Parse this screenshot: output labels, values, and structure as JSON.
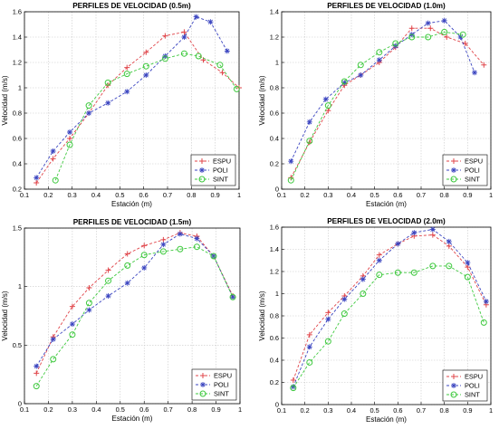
{
  "colors": {
    "ESPU": "#e0454a",
    "POLI": "#3b45c0",
    "SINT": "#3ec93e",
    "grid": "#c8c8c8",
    "axis": "#000000"
  },
  "chart_data": [
    {
      "type": "line",
      "title": "PERFILES DE VELOCIDAD (0.5m)",
      "xlabel": "Estación (m)",
      "ylabel": "Velocidad (m/s)",
      "xlim": [
        0.1,
        1
      ],
      "ylim": [
        0.2,
        1.6
      ],
      "xticks": [
        "0.1",
        "0.2",
        "0.3",
        "0.4",
        "0.5",
        "0.6",
        "0.7",
        "0.8",
        "0.9",
        "1"
      ],
      "yticks": [
        "0.2",
        "0.4",
        "0.6",
        "0.8",
        "1",
        "1.2",
        "1.4",
        "1.6"
      ],
      "grid": true,
      "legend_position": "bottom-right",
      "series": [
        {
          "name": "ESPU",
          "marker": "plus",
          "line": "dashed",
          "x": [
            0.15,
            0.22,
            0.29,
            0.37,
            0.45,
            0.53,
            0.61,
            0.69,
            0.77,
            0.85,
            0.93,
            1.0
          ],
          "y": [
            0.25,
            0.44,
            0.6,
            0.8,
            1.02,
            1.16,
            1.28,
            1.41,
            1.44,
            1.22,
            1.12,
            1.0
          ]
        },
        {
          "name": "POLI",
          "marker": "star",
          "line": "dashed",
          "x": [
            0.15,
            0.22,
            0.29,
            0.37,
            0.45,
            0.53,
            0.61,
            0.69,
            0.77,
            0.82,
            0.88,
            0.95
          ],
          "y": [
            0.29,
            0.5,
            0.65,
            0.8,
            0.88,
            0.97,
            1.1,
            1.25,
            1.4,
            1.56,
            1.52,
            1.29
          ]
        },
        {
          "name": "SINT",
          "marker": "circle",
          "line": "dashed",
          "x": [
            0.23,
            0.29,
            0.37,
            0.45,
            0.53,
            0.61,
            0.69,
            0.77,
            0.83,
            0.92,
            0.99
          ],
          "y": [
            0.27,
            0.55,
            0.86,
            1.04,
            1.11,
            1.17,
            1.23,
            1.27,
            1.25,
            1.18,
            0.99
          ]
        }
      ]
    },
    {
      "type": "line",
      "title": "PERFILES DE VELOCIDAD (1.0m)",
      "xlabel": "Estación (m)",
      "ylabel": "Velocidad (m/s)",
      "xlim": [
        0.1,
        1
      ],
      "ylim": [
        0,
        1.4
      ],
      "xticks": [
        "0.1",
        "0.2",
        "0.3",
        "0.4",
        "0.5",
        "0.6",
        "0.7",
        "0.8",
        "0.9",
        "1"
      ],
      "yticks": [
        "0",
        "0.2",
        "0.4",
        "0.6",
        "0.8",
        "1",
        "1.2",
        "1.4"
      ],
      "grid": true,
      "legend_position": "bottom-right",
      "series": [
        {
          "name": "ESPU",
          "marker": "plus",
          "line": "dashed",
          "x": [
            0.14,
            0.22,
            0.3,
            0.37,
            0.44,
            0.52,
            0.59,
            0.66,
            0.74,
            0.81,
            0.89,
            0.97
          ],
          "y": [
            0.09,
            0.37,
            0.62,
            0.82,
            0.9,
            1.0,
            1.12,
            1.27,
            1.27,
            1.2,
            1.15,
            0.98
          ]
        },
        {
          "name": "POLI",
          "marker": "star",
          "line": "dashed",
          "x": [
            0.14,
            0.22,
            0.29,
            0.37,
            0.44,
            0.52,
            0.59,
            0.66,
            0.73,
            0.8,
            0.87,
            0.93
          ],
          "y": [
            0.22,
            0.53,
            0.71,
            0.84,
            0.9,
            1.02,
            1.13,
            1.22,
            1.31,
            1.33,
            1.2,
            0.92
          ]
        },
        {
          "name": "SINT",
          "marker": "circle",
          "line": "dashed",
          "x": [
            0.14,
            0.22,
            0.3,
            0.37,
            0.44,
            0.52,
            0.59,
            0.66,
            0.73,
            0.8,
            0.88
          ],
          "y": [
            0.07,
            0.38,
            0.66,
            0.85,
            0.98,
            1.08,
            1.15,
            1.2,
            1.2,
            1.24,
            1.22
          ]
        }
      ]
    },
    {
      "type": "line",
      "title": "PERFILES DE VELOCIDAD (1.5m)",
      "xlabel": "Estación (m)",
      "ylabel": "Velocidad (m/s)",
      "xlim": [
        0.1,
        1
      ],
      "ylim": [
        0,
        1.5
      ],
      "xticks": [
        "0.1",
        "0.2",
        "0.3",
        "0.4",
        "0.5",
        "0.6",
        "0.7",
        "0.8",
        "0.9",
        "1"
      ],
      "yticks": [
        "0",
        "0.5",
        "1",
        "1.5"
      ],
      "grid": true,
      "legend_position": "bottom-right",
      "series": [
        {
          "name": "ESPU",
          "marker": "plus",
          "line": "dashed",
          "x": [
            0.15,
            0.22,
            0.3,
            0.37,
            0.45,
            0.53,
            0.6,
            0.68,
            0.75,
            0.82,
            0.89,
            0.97
          ],
          "y": [
            0.26,
            0.57,
            0.83,
            0.99,
            1.14,
            1.28,
            1.35,
            1.4,
            1.46,
            1.43,
            1.26,
            0.92
          ]
        },
        {
          "name": "POLI",
          "marker": "star",
          "line": "dashed",
          "x": [
            0.15,
            0.22,
            0.3,
            0.37,
            0.45,
            0.53,
            0.6,
            0.68,
            0.75,
            0.82,
            0.89,
            0.97
          ],
          "y": [
            0.32,
            0.55,
            0.68,
            0.8,
            0.92,
            1.03,
            1.16,
            1.36,
            1.45,
            1.41,
            1.26,
            0.91
          ]
        },
        {
          "name": "SINT",
          "marker": "circle",
          "line": "dashed",
          "x": [
            0.15,
            0.22,
            0.3,
            0.37,
            0.45,
            0.53,
            0.6,
            0.68,
            0.75,
            0.82,
            0.89,
            0.97
          ],
          "y": [
            0.15,
            0.38,
            0.59,
            0.86,
            1.05,
            1.18,
            1.27,
            1.3,
            1.32,
            1.34,
            1.26,
            0.91
          ]
        }
      ]
    },
    {
      "type": "line",
      "title": "PERFILES DE VELOCIDAD (2.0m)",
      "xlabel": "Estación (m)",
      "ylabel": "Velocidad (m/s)",
      "xlim": [
        0.1,
        1
      ],
      "ylim": [
        0,
        1.6
      ],
      "xticks": [
        "0.1",
        "0.2",
        "0.3",
        "0.4",
        "0.5",
        "0.6",
        "0.7",
        "0.8",
        "0.9",
        "1"
      ],
      "yticks": [
        "0",
        "0.2",
        "0.4",
        "0.6",
        "0.8",
        "1",
        "1.2",
        "1.4",
        "1.6"
      ],
      "grid": true,
      "legend_position": "bottom-right",
      "series": [
        {
          "name": "ESPU",
          "marker": "plus",
          "line": "dashed",
          "x": [
            0.15,
            0.22,
            0.3,
            0.37,
            0.45,
            0.52,
            0.6,
            0.67,
            0.75,
            0.82,
            0.9,
            0.98
          ],
          "y": [
            0.22,
            0.63,
            0.83,
            0.98,
            1.16,
            1.35,
            1.45,
            1.52,
            1.53,
            1.43,
            1.24,
            0.9
          ]
        },
        {
          "name": "POLI",
          "marker": "star",
          "line": "dashed",
          "x": [
            0.15,
            0.22,
            0.3,
            0.37,
            0.45,
            0.52,
            0.6,
            0.67,
            0.75,
            0.82,
            0.9,
            0.98
          ],
          "y": [
            0.16,
            0.52,
            0.77,
            0.95,
            1.13,
            1.3,
            1.45,
            1.55,
            1.58,
            1.47,
            1.28,
            0.93
          ]
        },
        {
          "name": "SINT",
          "marker": "circle",
          "line": "dashed",
          "x": [
            0.15,
            0.22,
            0.3,
            0.37,
            0.45,
            0.52,
            0.6,
            0.67,
            0.75,
            0.82,
            0.9,
            0.97
          ],
          "y": [
            0.15,
            0.38,
            0.57,
            0.82,
            1.0,
            1.17,
            1.19,
            1.19,
            1.25,
            1.25,
            1.15,
            0.74
          ]
        }
      ]
    }
  ]
}
